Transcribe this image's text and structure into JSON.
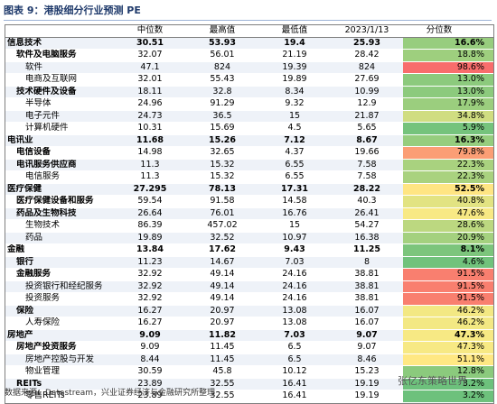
{
  "header": {
    "title": "图表 9：港股细分行业预测 PE"
  },
  "table": {
    "columns": [
      "中位数",
      "最高值",
      "最低值",
      "2023/1/13",
      "分位数"
    ],
    "rows": [
      {
        "name": "信息技术",
        "level": 0,
        "cells": [
          30.51,
          53.93,
          19.4,
          25.93
        ],
        "pct": "16.6%"
      },
      {
        "name": "软件及电脑服务",
        "level": 1,
        "cells": [
          32.07,
          56.01,
          21.19,
          28.42
        ],
        "pct": "18.8%"
      },
      {
        "name": "软件",
        "level": 2,
        "cells": [
          47.1,
          824,
          19.39,
          824
        ],
        "pct": "98.6%"
      },
      {
        "name": "电商及互联网",
        "level": 2,
        "cells": [
          32.01,
          55.43,
          19.89,
          27.69
        ],
        "pct": "13.0%"
      },
      {
        "name": "技术硬件及设备",
        "level": 1,
        "cells": [
          18.11,
          32.8,
          8.34,
          10.99
        ],
        "pct": "13.0%"
      },
      {
        "name": "半导体",
        "level": 2,
        "cells": [
          24.96,
          91.29,
          9.32,
          12.9
        ],
        "pct": "17.9%"
      },
      {
        "name": "电子元件",
        "level": 2,
        "cells": [
          24.73,
          36.5,
          15,
          21.87
        ],
        "pct": "34.8%"
      },
      {
        "name": "计算机硬件",
        "level": 2,
        "cells": [
          10.31,
          15.69,
          4.5,
          5.65
        ],
        "pct": "5.9%"
      },
      {
        "name": "电讯业",
        "level": 0,
        "cells": [
          11.68,
          15.26,
          7.12,
          8.67
        ],
        "pct": "16.3%"
      },
      {
        "name": "电信设备",
        "level": 1,
        "cells": [
          14.98,
          32.65,
          4.37,
          19.66
        ],
        "pct": "79.8%"
      },
      {
        "name": "电讯服务供应商",
        "level": 1,
        "cells": [
          11.3,
          15.32,
          6.55,
          7.58
        ],
        "pct": "22.3%"
      },
      {
        "name": "电信服务",
        "level": 2,
        "cells": [
          11.3,
          15.32,
          6.55,
          7.58
        ],
        "pct": "22.3%"
      },
      {
        "name": "医疗保健",
        "level": 0,
        "cells": [
          27.295,
          78.13,
          17.31,
          28.22
        ],
        "pct": "52.5%"
      },
      {
        "name": "医疗保健设备和服务",
        "level": 1,
        "cells": [
          59.54,
          91.58,
          14.58,
          40.3
        ],
        "pct": "40.8%"
      },
      {
        "name": "药品及生物科技",
        "level": 1,
        "cells": [
          26.64,
          76.01,
          16.76,
          26.41
        ],
        "pct": "47.6%"
      },
      {
        "name": "生物技术",
        "level": 2,
        "cells": [
          86.39,
          457.02,
          15,
          54.27
        ],
        "pct": "28.6%"
      },
      {
        "name": "药品",
        "level": 2,
        "cells": [
          19.89,
          32.52,
          10.97,
          16.38
        ],
        "pct": "20.9%"
      },
      {
        "name": "金融",
        "level": 0,
        "cells": [
          13.84,
          17.62,
          9.43,
          11.25
        ],
        "pct": "8.1%"
      },
      {
        "name": "银行",
        "level": 1,
        "cells": [
          11.23,
          14.67,
          7.03,
          8
        ],
        "pct": "4.6%"
      },
      {
        "name": "金融服务",
        "level": 1,
        "cells": [
          32.92,
          49.14,
          24.16,
          38.81
        ],
        "pct": "91.5%"
      },
      {
        "name": "投资银行和经纪服务",
        "level": 2,
        "cells": [
          32.92,
          49.14,
          24.16,
          38.81
        ],
        "pct": "91.5%"
      },
      {
        "name": "投资服务",
        "level": 2,
        "cells": [
          32.92,
          49.14,
          24.16,
          38.81
        ],
        "pct": "91.5%"
      },
      {
        "name": "保险",
        "level": 1,
        "cells": [
          16.27,
          20.97,
          13.08,
          16.07
        ],
        "pct": "46.2%"
      },
      {
        "name": "人寿保险",
        "level": 2,
        "cells": [
          16.27,
          20.97,
          13.08,
          16.07
        ],
        "pct": "46.2%"
      },
      {
        "name": "房地产",
        "level": 0,
        "cells": [
          9.09,
          11.82,
          7.03,
          9.07
        ],
        "pct": "47.3%"
      },
      {
        "name": "房地产投资服务",
        "level": 1,
        "cells": [
          9.09,
          11.45,
          6.5,
          9.07
        ],
        "pct": "47.3%"
      },
      {
        "name": "房地产控股与开发",
        "level": 2,
        "cells": [
          8.44,
          11.45,
          6.5,
          8.46
        ],
        "pct": "51.1%"
      },
      {
        "name": "物业管理",
        "level": 2,
        "cells": [
          30.59,
          45.8,
          10.12,
          15.23
        ],
        "pct": "12.8%"
      },
      {
        "name": "REITs",
        "level": 1,
        "cells": [
          23.89,
          32.55,
          16.41,
          19.19
        ],
        "pct": "3.2%"
      },
      {
        "name": "零售REITs",
        "level": 2,
        "cells": [
          23.89,
          32.55,
          16.41,
          19.19
        ],
        "pct": "3.2%"
      }
    ]
  },
  "footer": {
    "source": "数据来源：Datastream，兴业证券经济与金融研究所整理",
    "watermark": "张亿东策略世界"
  }
}
